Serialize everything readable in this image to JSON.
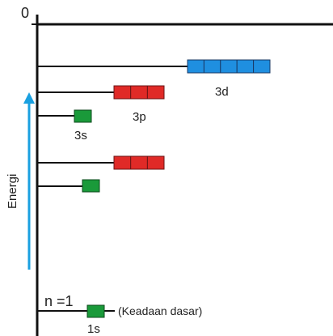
{
  "zero_label": "0",
  "energy_label": "Energi",
  "orbitals": {
    "3d": "3d",
    "3p": "3p",
    "3s": "3s",
    "1s": "1s"
  },
  "n_label": "n =1",
  "ground_state_label": "(Keadaan dasar)",
  "colors": {
    "d_orbital": "#1f8fe0",
    "p_orbital": "#e02a27",
    "s_orbital": "#1a9a3a",
    "arrow": "#1aa0e0",
    "line": "#111111"
  }
}
